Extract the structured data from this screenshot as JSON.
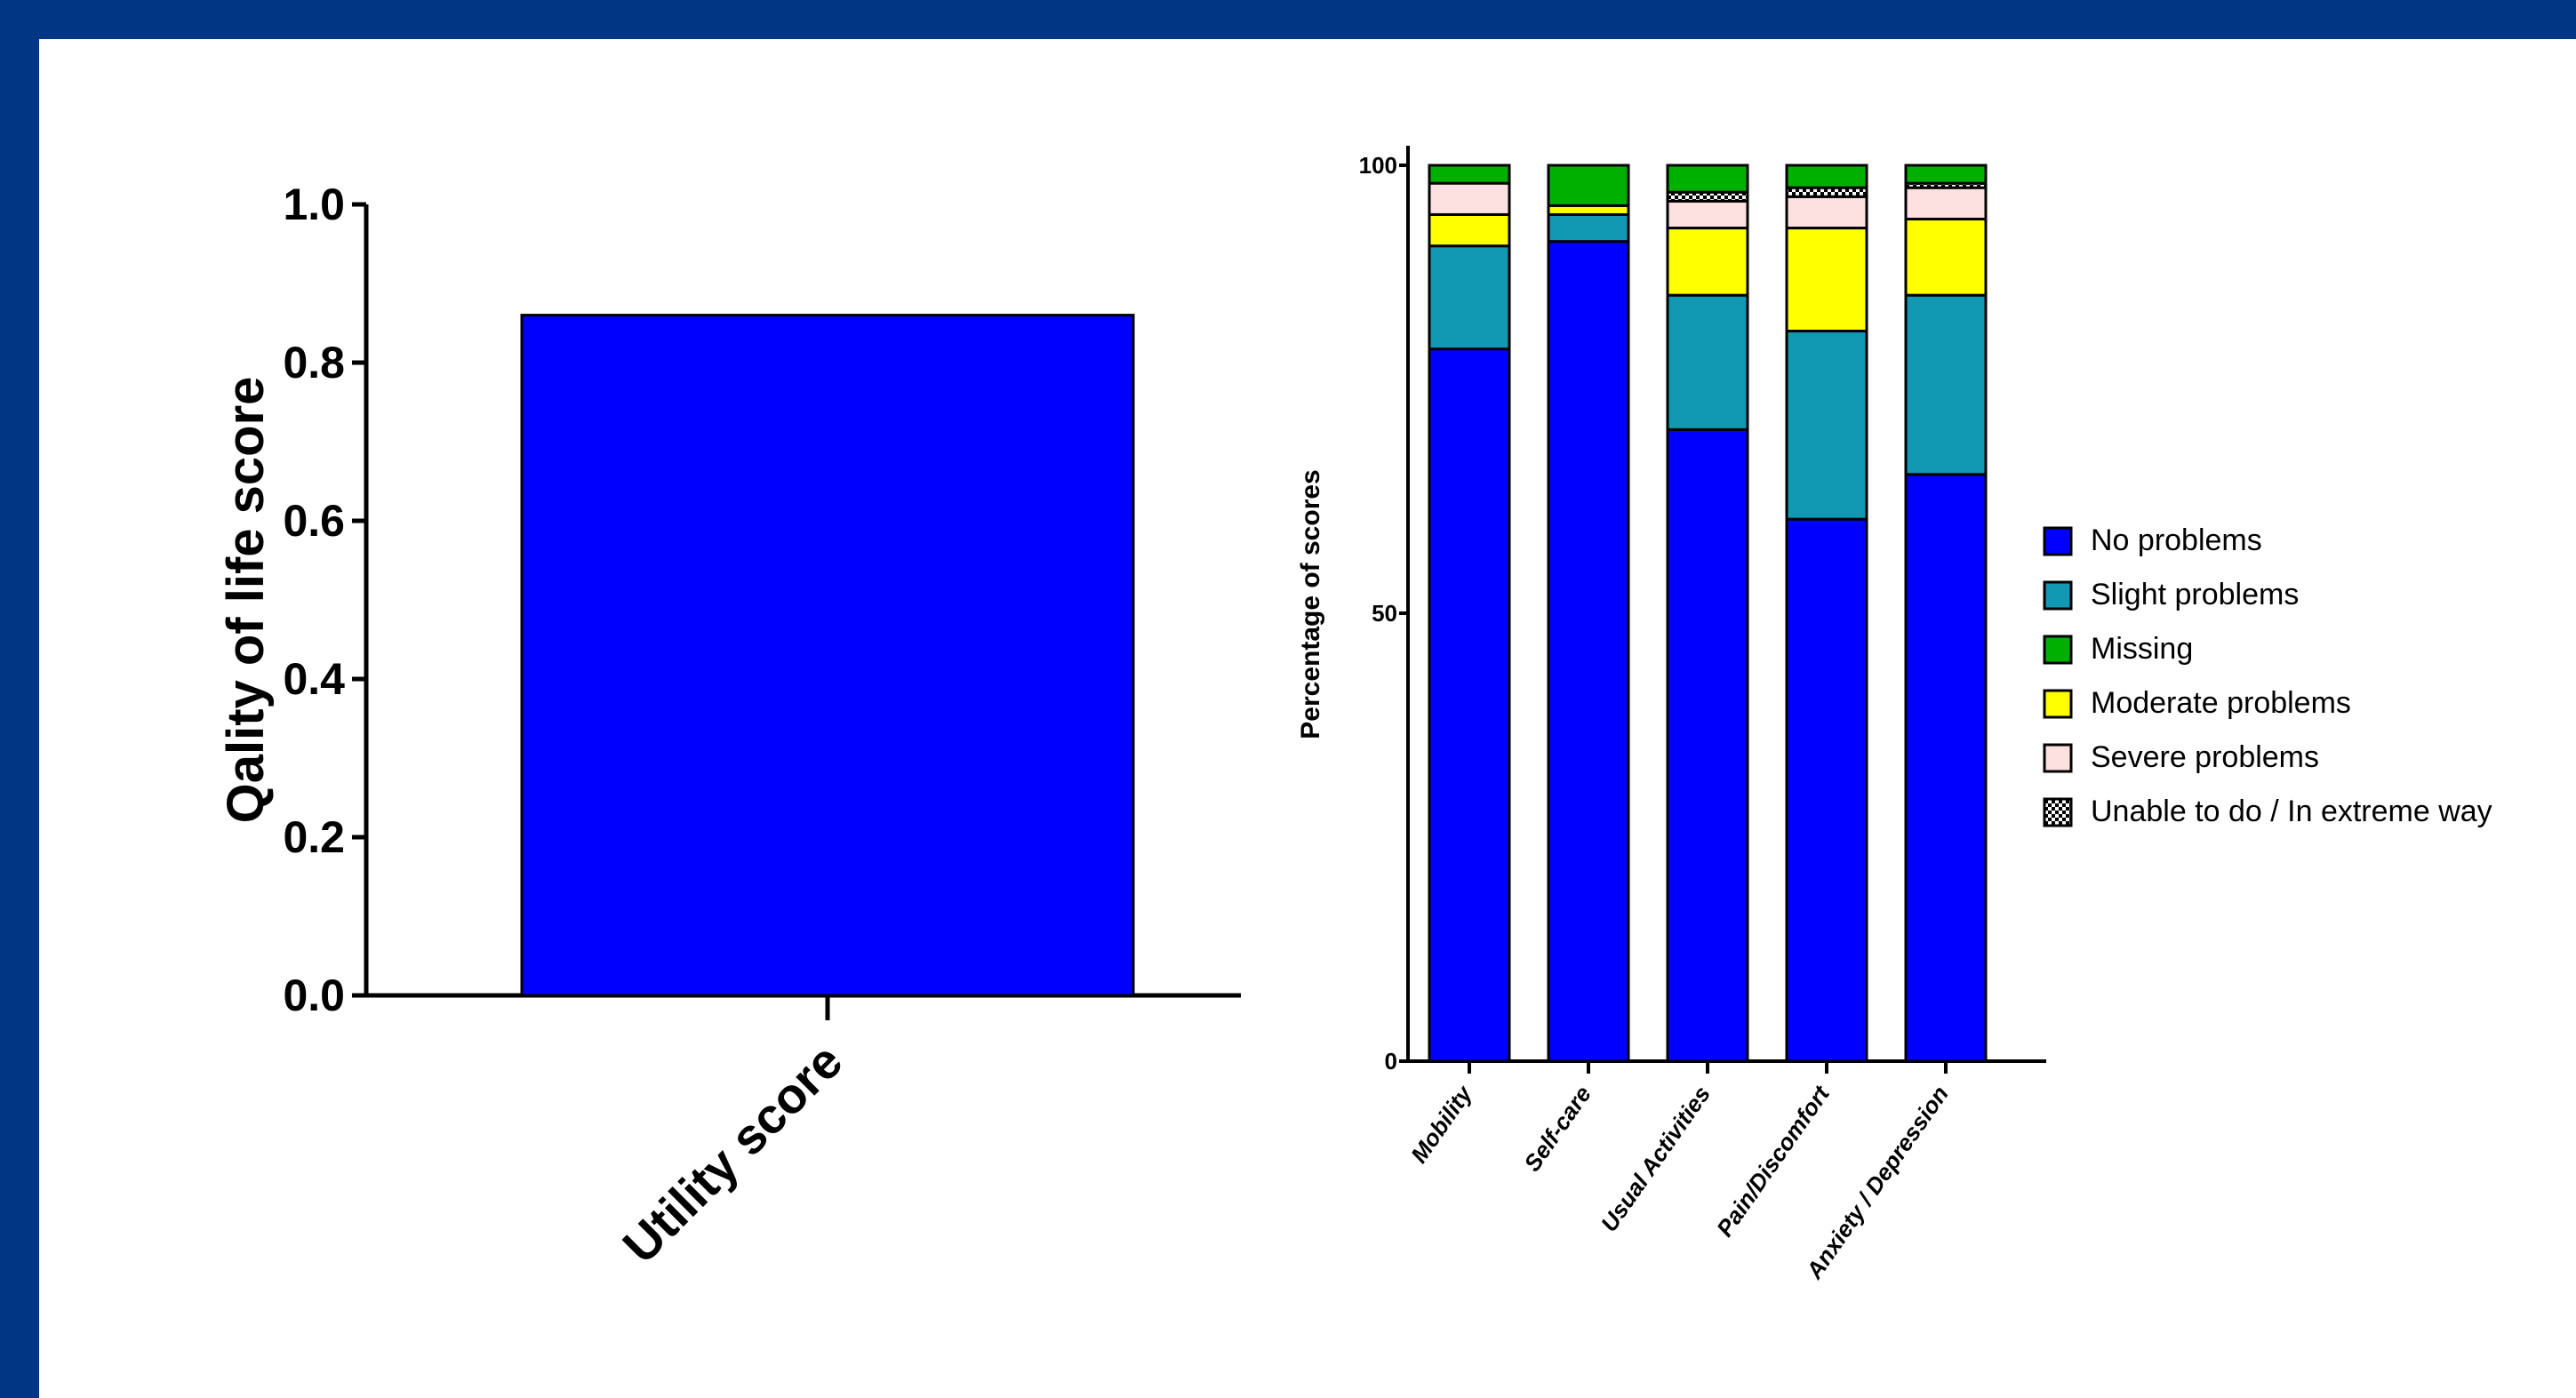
{
  "chart_data": [
    {
      "type": "bar",
      "categories": [
        "Utility score"
      ],
      "values": [
        0.86
      ],
      "title": "",
      "xlabel": "",
      "ylabel": "Qality of life score",
      "ylim": [
        0,
        1.0
      ],
      "yticks": [
        "0.0",
        "0.2",
        "0.4",
        "0.6",
        "0.8",
        "1.0"
      ],
      "color": "#0000ff",
      "grid": false
    },
    {
      "type": "bar",
      "stacked": true,
      "categories": [
        "Mobility",
        "Self-care",
        "Usual Activities",
        "Pain/Discomfort",
        "Anxiety / Depression"
      ],
      "ylabel": "Percentage of scores",
      "xlabel": "",
      "title": "",
      "ylim": [
        0,
        100
      ],
      "yticks": [
        "0",
        "50",
        "100"
      ],
      "grid": false,
      "legend_position": "right",
      "series": [
        {
          "name": "No problems",
          "color": "#0000ff",
          "values": [
            79.5,
            91.5,
            70.5,
            60.5,
            65.5
          ]
        },
        {
          "name": "Slight problems",
          "color": "#1198b3",
          "values": [
            11.5,
            3.0,
            15.0,
            21.0,
            20.0
          ]
        },
        {
          "name": "Moderate problems",
          "color": "#ffff00",
          "values": [
            3.5,
            1.0,
            7.5,
            11.5,
            8.5
          ]
        },
        {
          "name": "Severe problems",
          "color": "#fde0e0",
          "values": [
            3.5,
            0.0,
            3.0,
            3.5,
            3.5
          ]
        },
        {
          "name": "Unable to do / In extreme way",
          "color": "#000000",
          "pattern": "checker",
          "values": [
            0.0,
            0.0,
            1.0,
            1.0,
            0.5
          ]
        },
        {
          "name": "Missing",
          "color": "#00b000",
          "values": [
            2.0,
            4.5,
            3.0,
            2.5,
            2.0
          ]
        }
      ],
      "legend_order": [
        "No problems",
        "Slight problems",
        "Missing",
        "Moderate problems",
        "Severe problems",
        "Unable to do / In extreme way"
      ]
    }
  ]
}
